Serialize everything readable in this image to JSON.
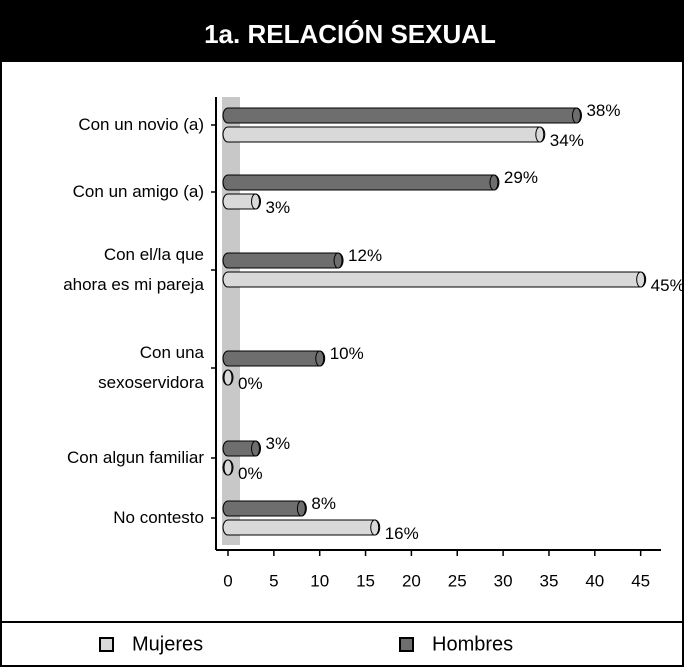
{
  "chart_data": {
    "type": "bar",
    "orientation": "horizontal",
    "title": "1a. RELACIÓN SEXUAL",
    "categories": [
      "Con un novio (a)",
      "Con un amigo (a)",
      "Con el/la que\nahora es mi pareja",
      "Con una\nsexoservidora",
      "Con algun familiar",
      "No contesto"
    ],
    "series": [
      {
        "name": "Hombres",
        "color": "#6e6e6e",
        "values": [
          38,
          29,
          12,
          10,
          3,
          8
        ],
        "value_labels": [
          "38%",
          "29%",
          "12%",
          "10%",
          "3%",
          "8%"
        ]
      },
      {
        "name": "Mujeres",
        "color": "#d9d9d9",
        "values": [
          34,
          3,
          45,
          0,
          0,
          16
        ],
        "value_labels": [
          "34%",
          "3%",
          "45%",
          "0%",
          "0%",
          "16%"
        ]
      }
    ],
    "xlim": [
      0,
      47
    ],
    "xticks": [
      0,
      5,
      10,
      15,
      20,
      25,
      30,
      35,
      40,
      45
    ],
    "legend": "bottom",
    "legend_order": [
      1,
      0
    ]
  }
}
